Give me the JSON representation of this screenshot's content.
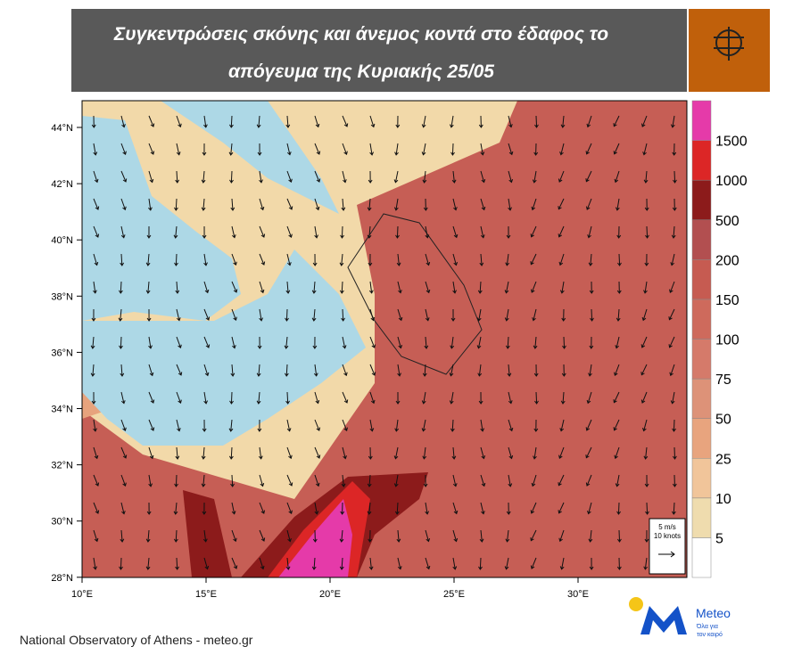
{
  "header": {
    "title_lines": [
      "Συγκεντρώσεις σκόνης και άνεμος κοντά στο έδαφος το",
      "απόγευμα της Κυριακής 25/05"
    ]
  },
  "map": {
    "lat_labels": [
      "44°N",
      "42°N",
      "40°N",
      "38°N",
      "36°N",
      "34°N",
      "32°N",
      "30°N",
      "28°N"
    ],
    "lon_labels": [
      "10°E",
      "15°E",
      "20°E",
      "25°E",
      "30°E"
    ],
    "wind_key": [
      "5 m/s",
      "10 knots"
    ]
  },
  "colorbar": {
    "levels": [
      5,
      10,
      25,
      50,
      75,
      100,
      150,
      200,
      500,
      1000,
      1500
    ],
    "colors": [
      "#ffffff",
      "#efdcae",
      "#f1c59a",
      "#e8a47e",
      "#dd9278",
      "#d57a6a",
      "#ce6a5c",
      "#c65b51",
      "#b24f50",
      "#8c1b1b",
      "#dc2626",
      "#e53aa9"
    ]
  },
  "footer": {
    "source": "National Observatory of Athens - meteo.gr"
  },
  "logo": {
    "name": "Meteo",
    "tagline_lines": [
      "Όλα για",
      "τον καιρό"
    ]
  }
}
